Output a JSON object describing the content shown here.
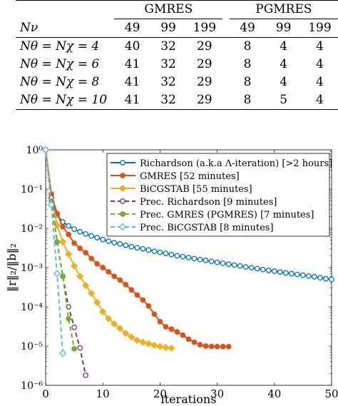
{
  "table": {
    "group_headers": [
      "GMRES",
      "PGMRES"
    ],
    "nv_label": "Nν",
    "nv_values": [
      "49",
      "99",
      "199",
      "49",
      "99",
      "199"
    ],
    "rows": [
      {
        "label": "Nθ = Nχ = 4",
        "values": [
          "40",
          "32",
          "29",
          "8",
          "4",
          "4"
        ]
      },
      {
        "label": "Nθ = Nχ = 6",
        "values": [
          "41",
          "32",
          "29",
          "8",
          "4",
          "4"
        ]
      },
      {
        "label": "Nθ = Nχ = 8",
        "values": [
          "41",
          "32",
          "29",
          "8",
          "4",
          "4"
        ]
      },
      {
        "label": "Nθ = Nχ = 10",
        "values": [
          "41",
          "32",
          "29",
          "8",
          "5",
          "4"
        ]
      }
    ]
  },
  "chart_data": {
    "type": "line",
    "xlabel": "iterations",
    "ylabel": "‖r‖₂/‖b‖₂",
    "xlim": [
      0,
      50
    ],
    "ylim_log10": [
      -6,
      0
    ],
    "y_scale": "log",
    "xticks": [
      "0",
      "10",
      "20",
      "30",
      "40",
      "50"
    ],
    "yticks": [
      "10⁰",
      "10⁻¹",
      "10⁻²",
      "10⁻³",
      "10⁻⁴",
      "10⁻⁵",
      "10⁻⁶"
    ],
    "legend_position": "top-right",
    "series": [
      {
        "name": "Richardson (a.k.a Λ-iteration) [>2 hours]",
        "color": "#0072BD",
        "dash": "solid",
        "marker": "circle-open",
        "x": [
          0,
          1,
          2,
          3,
          4,
          5,
          6,
          7,
          8,
          9,
          10,
          11,
          12,
          13,
          14,
          15,
          16,
          17,
          18,
          19,
          20,
          21,
          22,
          23,
          24,
          25,
          26,
          27,
          28,
          29,
          30,
          31,
          32,
          33,
          34,
          35,
          36,
          37,
          38,
          39,
          40,
          41,
          42,
          43,
          44,
          45,
          46,
          47,
          48,
          49,
          50
        ],
        "y": [
          1,
          0.06,
          0.022,
          0.0145,
          0.0115,
          0.0095,
          0.0082,
          0.0072,
          0.0064,
          0.0058,
          0.0052,
          0.0047,
          0.0043,
          0.004,
          0.0037,
          0.0034,
          0.0032,
          0.003,
          0.0028,
          0.0026,
          0.00245,
          0.0023,
          0.00215,
          0.002,
          0.0019,
          0.0018,
          0.0017,
          0.0016,
          0.00152,
          0.00144,
          0.00136,
          0.00129,
          0.00122,
          0.00116,
          0.0011,
          0.00104,
          0.00099,
          0.00094,
          0.00089,
          0.00085,
          0.00081,
          0.00077,
          0.00073,
          0.0007,
          0.00067,
          0.00064,
          0.00061,
          0.00058,
          0.00055,
          0.00052,
          0.0005
        ]
      },
      {
        "name": "GMRES [52 minutes]",
        "color": "#D95319",
        "dash": "solid",
        "marker": "circle-filled",
        "x": [
          0,
          1,
          2,
          3,
          4,
          5,
          6,
          7,
          8,
          9,
          10,
          11,
          12,
          13,
          14,
          15,
          16,
          17,
          18,
          19,
          20,
          21,
          22,
          23,
          24,
          25,
          26,
          27,
          28,
          29,
          30,
          31,
          32
        ],
        "y": [
          1,
          0.075,
          0.024,
          0.011,
          0.007,
          0.0042,
          0.0031,
          0.0024,
          0.0017,
          0.00125,
          0.001,
          0.00078,
          0.0006,
          0.00048,
          0.00037,
          0.00027,
          0.0002,
          0.00015,
          0.000105,
          6.5e-05,
          4.2e-05,
          3.1e-05,
          2.7e-05,
          2.3e-05,
          1.9e-05,
          1.5e-05,
          1.25e-05,
          1.08e-05,
          1e-05,
          9.8e-06,
          9.7e-06,
          9.7e-06,
          9.7e-06
        ]
      },
      {
        "name": "BiCGSTAB [55 minutes]",
        "color": "#EDB120",
        "dash": "solid",
        "marker": "diamond-filled",
        "x": [
          0,
          1,
          2,
          3,
          4,
          5,
          6,
          7,
          8,
          9,
          10,
          11,
          12,
          13,
          14,
          15,
          16,
          17,
          18,
          19,
          20,
          21,
          22
        ],
        "y": [
          1,
          0.06,
          0.012,
          0.0045,
          0.0022,
          0.0011,
          0.0006,
          0.00035,
          0.00022,
          0.00013,
          7.5e-05,
          5e-05,
          3.7e-05,
          2.8e-05,
          2.1e-05,
          1.7e-05,
          1.4e-05,
          1.25e-05,
          1.15e-05,
          1.05e-05,
          9.8e-06,
          9.2e-06,
          8.8e-06
        ]
      },
      {
        "name": "Prec. Richardson [9 minutes]",
        "color": "#7E2F8E",
        "dash": "dashed",
        "marker": "circle-open",
        "x": [
          0,
          1,
          2,
          3,
          4,
          5,
          6,
          7
        ],
        "y": [
          1,
          0.06,
          0.0045,
          0.0006,
          0.0001,
          3e-05,
          9e-06,
          1.8e-06
        ]
      },
      {
        "name": "Prec. GMRES (PGMRES) [7 minutes]",
        "color": "#77AC30",
        "dash": "dashed",
        "marker": "circle-filled",
        "x": [
          0,
          1,
          2,
          3,
          4,
          5
        ],
        "y": [
          1,
          0.05,
          0.0045,
          0.0006,
          5e-05,
          8.5e-06
        ]
      },
      {
        "name": "Prec. BiCGSTAB [8 minutes]",
        "color": "#4DBEEE",
        "dash": "dashed",
        "marker": "diamond-open",
        "x": [
          0,
          1,
          2,
          3
        ],
        "y": [
          1,
          0.04,
          0.0007,
          6.5e-06
        ]
      }
    ]
  }
}
